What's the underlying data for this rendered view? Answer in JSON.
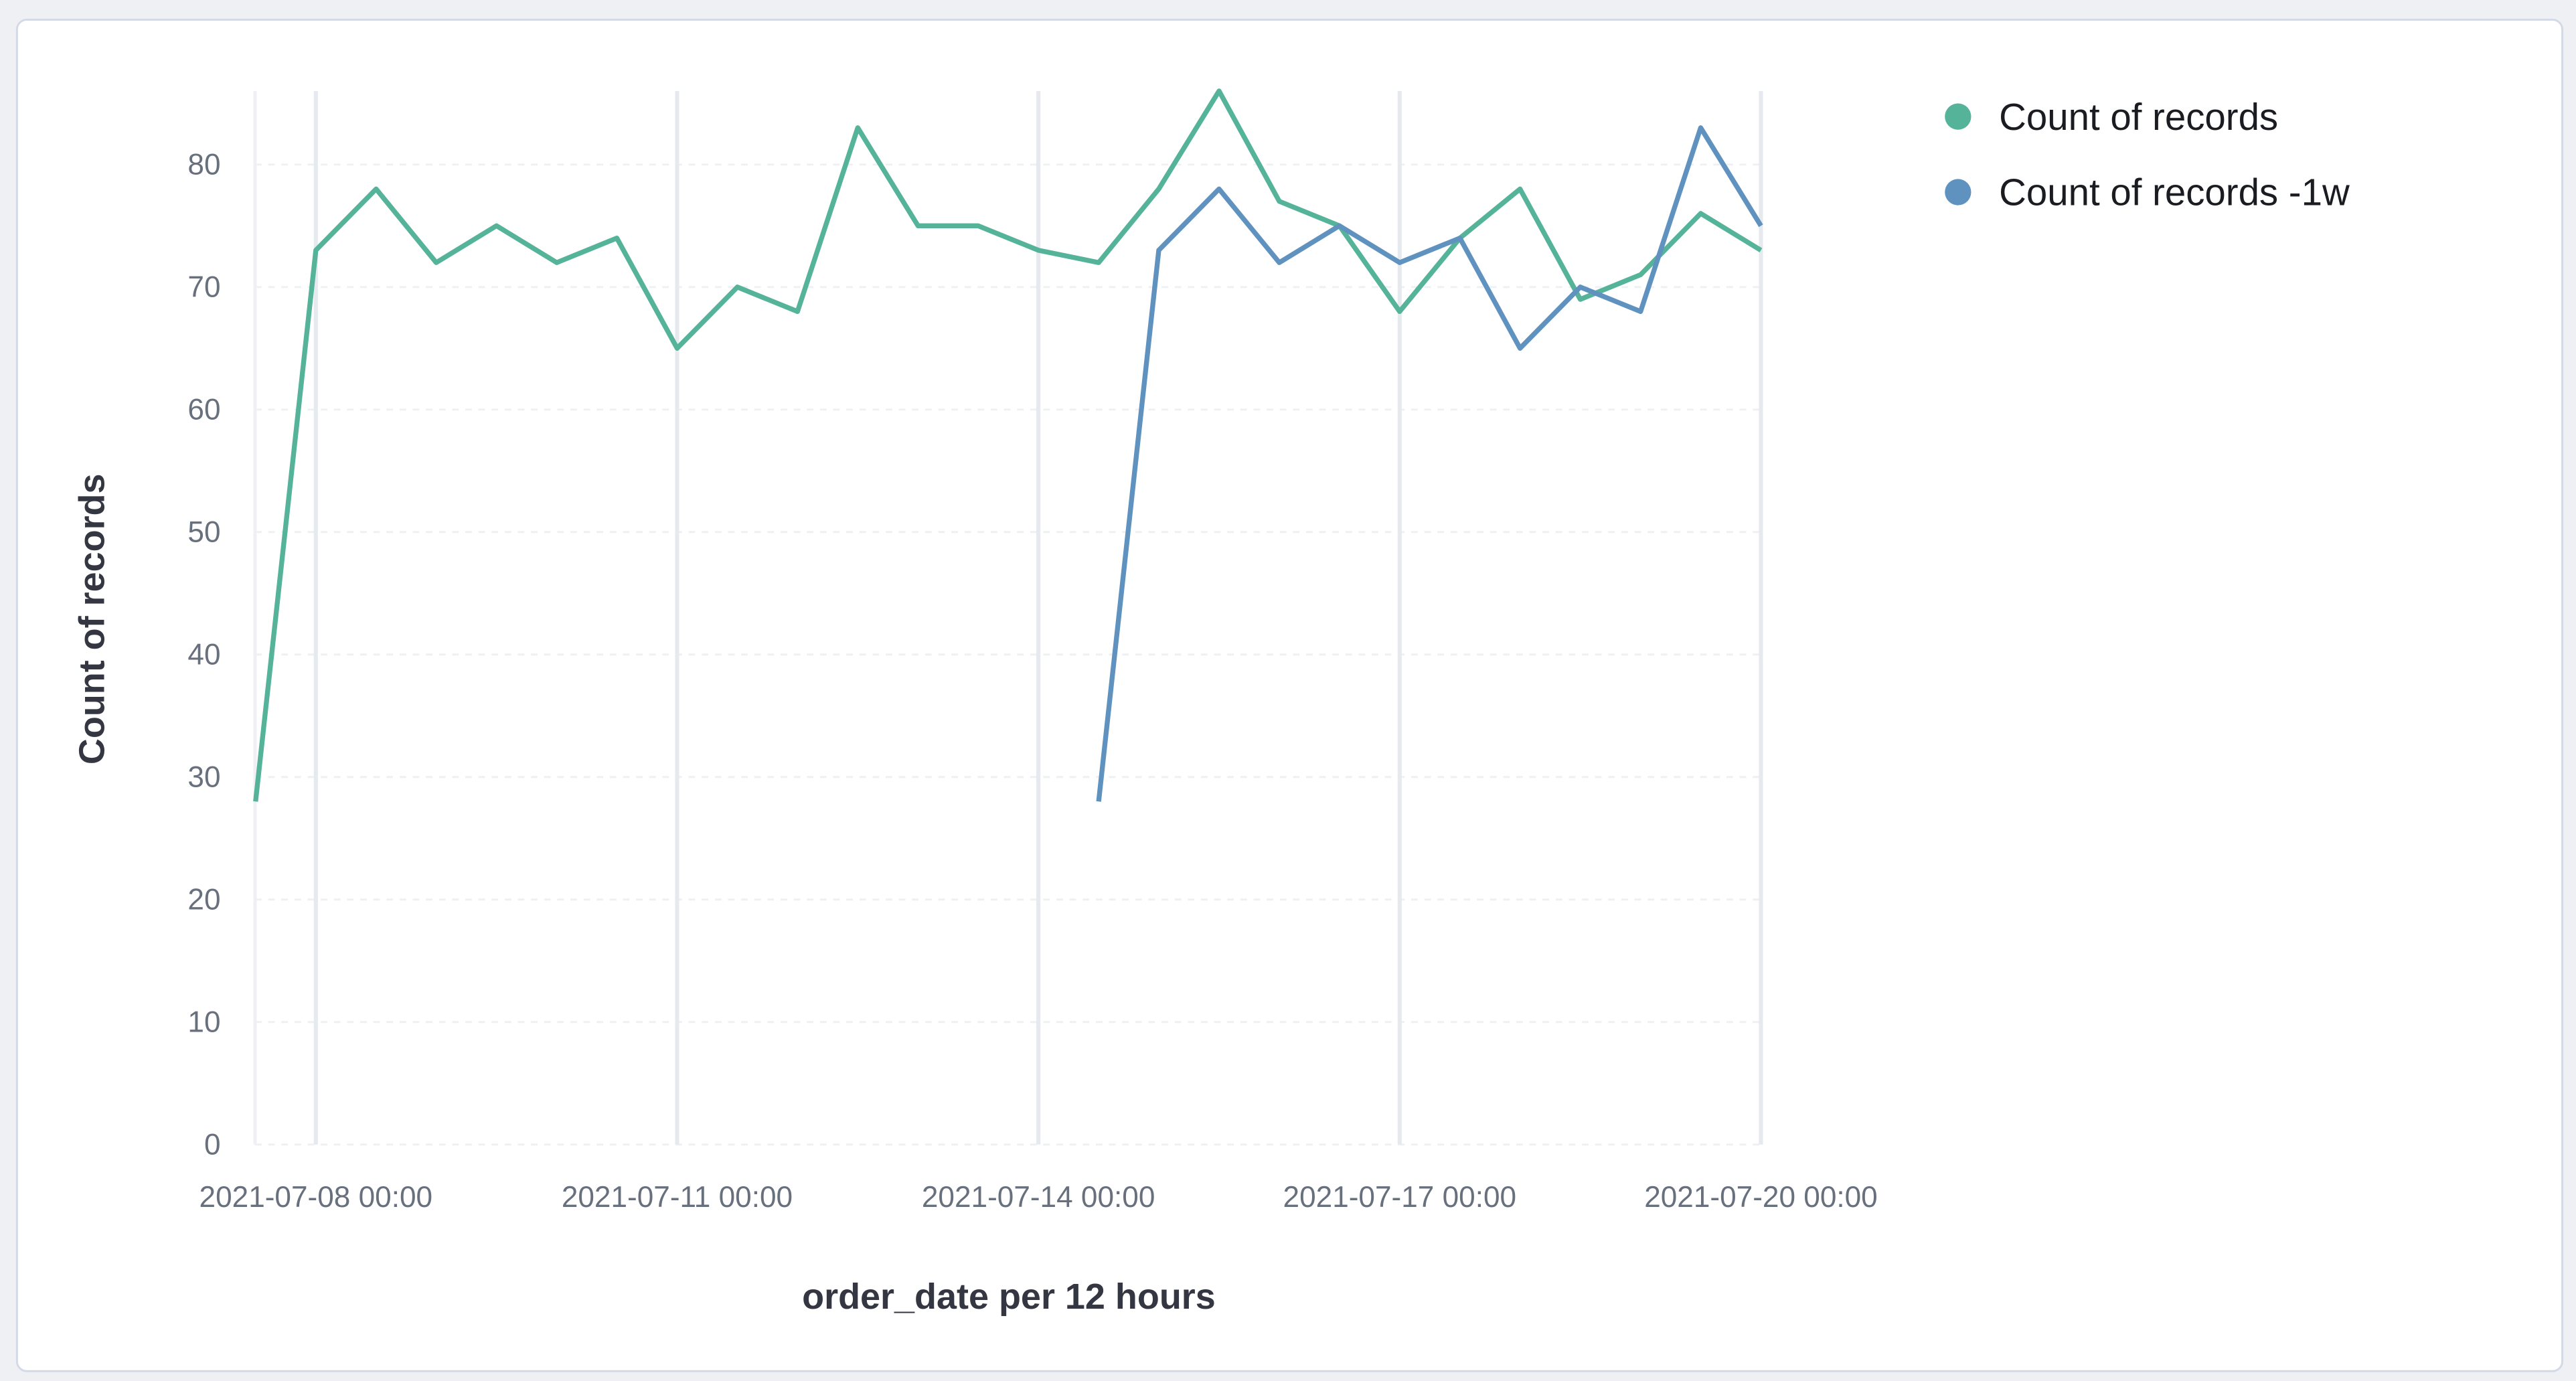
{
  "chart_data": {
    "type": "line",
    "title": "",
    "xlabel": "order_date per 12 hours",
    "ylabel": "Count of records",
    "ylim": [
      0,
      86
    ],
    "yticks": [
      0,
      10,
      20,
      30,
      40,
      50,
      60,
      70,
      80
    ],
    "xticks": [
      "2021-07-08 00:00",
      "2021-07-11 00:00",
      "2021-07-14 00:00",
      "2021-07-17 00:00",
      "2021-07-20 00:00"
    ],
    "grid": true,
    "legend_position": "top-right",
    "series": [
      {
        "name": "Count of records",
        "color": "#54b399",
        "x": [
          "2021-07-07 12:00",
          "2021-07-08 00:00",
          "2021-07-08 12:00",
          "2021-07-09 00:00",
          "2021-07-09 12:00",
          "2021-07-10 00:00",
          "2021-07-10 12:00",
          "2021-07-11 00:00",
          "2021-07-11 12:00",
          "2021-07-12 00:00",
          "2021-07-12 12:00",
          "2021-07-13 00:00",
          "2021-07-13 12:00",
          "2021-07-14 00:00",
          "2021-07-14 12:00",
          "2021-07-15 00:00",
          "2021-07-15 12:00",
          "2021-07-16 00:00",
          "2021-07-16 12:00",
          "2021-07-17 00:00",
          "2021-07-17 12:00",
          "2021-07-18 00:00",
          "2021-07-18 12:00",
          "2021-07-19 00:00",
          "2021-07-19 12:00",
          "2021-07-20 00:00"
        ],
        "values": [
          28,
          73,
          78,
          72,
          75,
          72,
          74,
          65,
          70,
          68,
          83,
          75,
          75,
          73,
          72,
          78,
          86,
          77,
          75,
          68,
          74,
          78,
          69,
          71,
          76,
          73
        ]
      },
      {
        "name": "Count of records -1w",
        "color": "#6092c0",
        "x": [
          "2021-07-14 12:00",
          "2021-07-15 00:00",
          "2021-07-15 12:00",
          "2021-07-16 00:00",
          "2021-07-16 12:00",
          "2021-07-17 00:00",
          "2021-07-17 12:00",
          "2021-07-18 00:00",
          "2021-07-18 12:00",
          "2021-07-19 00:00",
          "2021-07-19 12:00",
          "2021-07-20 00:00"
        ],
        "values": [
          28,
          73,
          78,
          72,
          75,
          72,
          74,
          65,
          70,
          68,
          83,
          75
        ]
      }
    ]
  }
}
